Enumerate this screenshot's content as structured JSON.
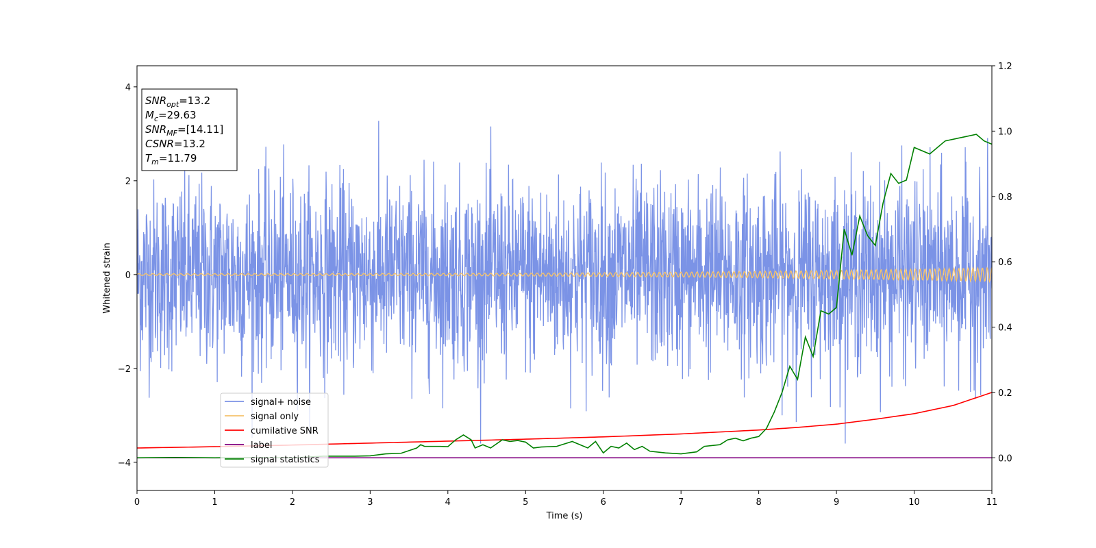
{
  "chart_data": {
    "type": "line",
    "xlabel": "Time (s)",
    "ylabel": "Whitened strain",
    "xlim": [
      0,
      11
    ],
    "ylim": [
      -4.6,
      4.45
    ],
    "y2lim": [
      -0.1,
      1.2
    ],
    "xticks": [
      "0",
      "1",
      "2",
      "3",
      "4",
      "5",
      "6",
      "7",
      "8",
      "9",
      "10",
      "11"
    ],
    "yticks": [
      "−4",
      "−2",
      "0",
      "2",
      "4"
    ],
    "y2ticks": [
      "0.0",
      "0.2",
      "0.4",
      "0.6",
      "0.8",
      "1.0",
      "1.2"
    ],
    "legend_position": "lower-left",
    "info_box": [
      {
        "main": "SNR",
        "sub": "opt",
        "rest": "=13.2"
      },
      {
        "main": "M",
        "sub": "c",
        "rest": "=29.63"
      },
      {
        "main": "SNR",
        "sub": "MF",
        "rest": "=[14.11]"
      },
      {
        "main": "CSNR",
        "sub": "",
        "rest": "=13.2"
      },
      {
        "main": "T",
        "sub": "m",
        "rest": "=11.79"
      }
    ],
    "series": [
      {
        "name": "signal+ noise",
        "color": "#7b93e6",
        "axis": "left",
        "description_values": "noise band approx ±1.5 with spikes up to 3.5",
        "amplitude": 1.0
      },
      {
        "name": "signal only",
        "color": "#f5c26b",
        "axis": "left",
        "x_start": 0,
        "amplitude_start": 0.02,
        "amplitude_end": 0.15
      },
      {
        "name": "cumilative SNR",
        "color": "#ff0000",
        "axis": "right",
        "x": [
          0,
          1,
          2,
          3,
          4,
          5,
          6,
          7,
          8,
          8.5,
          9,
          9.5,
          10,
          10.5,
          11
        ],
        "values": [
          0.03,
          0.034,
          0.039,
          0.045,
          0.051,
          0.057,
          0.064,
          0.073,
          0.085,
          0.093,
          0.103,
          0.118,
          0.135,
          0.16,
          0.2
        ]
      },
      {
        "name": "label",
        "color": "#800080",
        "axis": "right",
        "x": [
          0,
          11
        ],
        "values": [
          0.0,
          0.0
        ]
      },
      {
        "name": "signal statistics",
        "color": "#008000",
        "axis": "right",
        "x": [
          0,
          0.5,
          1.0,
          1.5,
          2.0,
          2.4,
          2.8,
          3.0,
          3.2,
          3.4,
          3.6,
          3.65,
          3.7,
          3.9,
          4.0,
          4.1,
          4.2,
          4.3,
          4.35,
          4.45,
          4.55,
          4.7,
          4.8,
          4.9,
          5.0,
          5.1,
          5.2,
          5.4,
          5.6,
          5.8,
          5.9,
          6.0,
          6.1,
          6.2,
          6.3,
          6.4,
          6.5,
          6.6,
          6.8,
          7.0,
          7.2,
          7.3,
          7.5,
          7.6,
          7.7,
          7.8,
          7.9,
          8.0,
          8.1,
          8.2,
          8.3,
          8.4,
          8.5,
          8.6,
          8.7,
          8.8,
          8.9,
          9.0,
          9.1,
          9.2,
          9.3,
          9.4,
          9.5,
          9.6,
          9.7,
          9.8,
          9.9,
          10.0,
          10.2,
          10.4,
          10.6,
          10.8,
          10.9,
          11.0
        ],
        "values": [
          0.0,
          0.001,
          0.0,
          0.001,
          0.0,
          0.005,
          0.005,
          0.006,
          0.012,
          0.014,
          0.03,
          0.04,
          0.035,
          0.035,
          0.034,
          0.055,
          0.07,
          0.055,
          0.03,
          0.04,
          0.03,
          0.055,
          0.05,
          0.053,
          0.048,
          0.03,
          0.033,
          0.035,
          0.05,
          0.03,
          0.05,
          0.015,
          0.035,
          0.03,
          0.045,
          0.025,
          0.035,
          0.02,
          0.015,
          0.012,
          0.018,
          0.035,
          0.04,
          0.055,
          0.06,
          0.052,
          0.06,
          0.065,
          0.09,
          0.14,
          0.2,
          0.28,
          0.24,
          0.37,
          0.31,
          0.45,
          0.44,
          0.46,
          0.7,
          0.62,
          0.74,
          0.68,
          0.65,
          0.78,
          0.87,
          0.84,
          0.85,
          0.95,
          0.93,
          0.97,
          0.98,
          0.99,
          0.97,
          0.96
        ]
      }
    ]
  }
}
